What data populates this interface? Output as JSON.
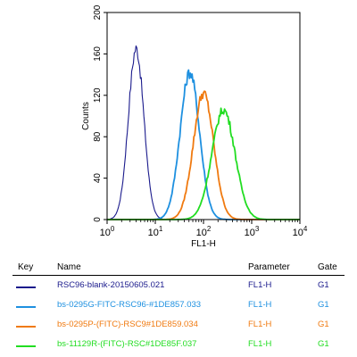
{
  "chart_data": {
    "type": "line",
    "xlabel": "FL1-H",
    "ylabel": "Counts",
    "x_scale": "log",
    "xlim": [
      1,
      10000
    ],
    "ylim": [
      0,
      200
    ],
    "x_ticks": [
      1,
      10,
      100,
      1000,
      10000
    ],
    "x_tick_labels": [
      {
        "base": "10",
        "exp": "0"
      },
      {
        "base": "10",
        "exp": "1"
      },
      {
        "base": "10",
        "exp": "2"
      },
      {
        "base": "10",
        "exp": "3"
      },
      {
        "base": "10",
        "exp": "4"
      }
    ],
    "y_ticks": [
      0,
      40,
      80,
      120,
      160,
      200
    ],
    "y_tick_labels": [
      "0",
      "40",
      "80",
      "120",
      "160",
      "200"
    ],
    "series": [
      {
        "name": "RSC96-blank-20150605.021",
        "color": "#1a1a8c",
        "peak_x": 4,
        "peak_y": 165,
        "spread": 0.16
      },
      {
        "name": "bs-0295G-FITC-RSC96-#1DE857.033",
        "color": "#1e90e0",
        "peak_x": 52,
        "peak_y": 142,
        "spread": 0.2
      },
      {
        "name": "bs-0295P-(FITC)-RSC9#1DE859.034",
        "color": "#f07a10",
        "peak_x": 100,
        "peak_y": 122,
        "spread": 0.21
      },
      {
        "name": "bs-11129R-(FITC)-RSC#1DE85F.037",
        "color": "#22dd22",
        "peak_x": 260,
        "peak_y": 106,
        "spread": 0.24
      }
    ]
  },
  "legend": {
    "headers": {
      "key": "Key",
      "name": "Name",
      "parameter": "Parameter",
      "gate": "Gate"
    },
    "rows": [
      {
        "name": "RSC96-blank-20150605.021",
        "parameter": "FL1-H",
        "gate": "G1",
        "color": "#1a1a8c",
        "text_color": "#1a1a8c"
      },
      {
        "name": "bs-0295G-FITC-RSC96-#1DE857.033",
        "parameter": "FL1-H",
        "gate": "G1",
        "color": "#1e90e0",
        "text_color": "#1e90e0"
      },
      {
        "name": "bs-0295P-(FITC)-RSC9#1DE859.034",
        "parameter": "FL1-H",
        "gate": "G1",
        "color": "#f07a10",
        "text_color": "#f07a10"
      },
      {
        "name": "bs-11129R-(FITC)-RSC#1DE85F.037",
        "parameter": "FL1-H",
        "gate": "G1",
        "color": "#22dd22",
        "text_color": "#22dd22"
      }
    ]
  }
}
